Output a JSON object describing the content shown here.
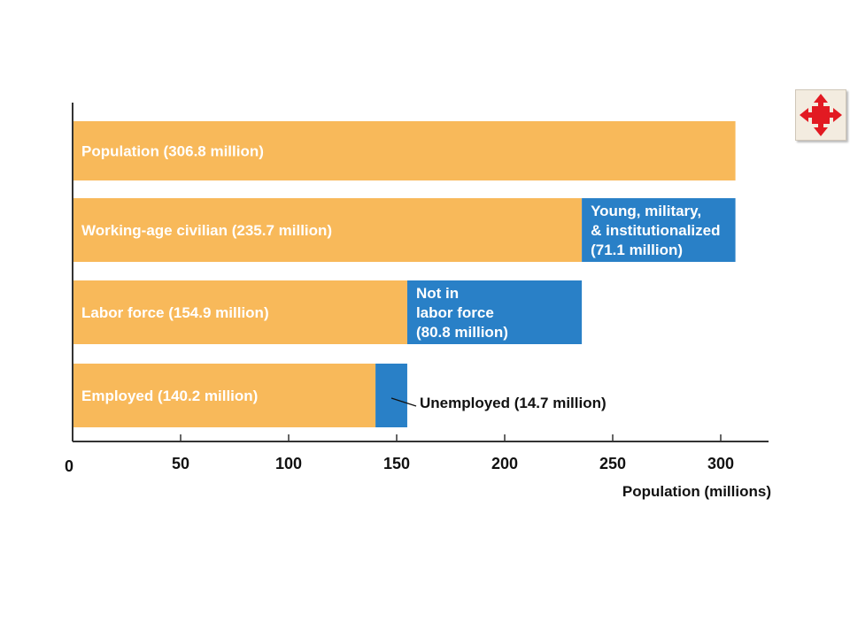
{
  "colors": {
    "orange": "#f8b95a",
    "blue": "#2980c7",
    "axis": "#333333",
    "icon_red": "#e21a22"
  },
  "nav": {
    "icon": "expand-arrows-icon"
  },
  "chart_data": {
    "type": "bar",
    "orientation": "horizontal",
    "stacked": true,
    "xlabel": "Population (millions)",
    "xlim": [
      0,
      322
    ],
    "xticks": [
      0,
      50,
      100,
      150,
      200,
      250,
      300
    ],
    "grid": false,
    "rows": [
      {
        "segments": [
          {
            "start": 0,
            "value": 306.8,
            "color": "orange",
            "label_lines": [
              "Population (306.8 million)"
            ]
          }
        ]
      },
      {
        "segments": [
          {
            "start": 0,
            "value": 235.7,
            "color": "orange",
            "label_lines": [
              "Working-age civilian (235.7 million)"
            ]
          },
          {
            "start": 235.7,
            "value": 71.1,
            "color": "blue",
            "label_lines": [
              "Young,  military,",
              "& institutionalized",
              "(71.1 million)"
            ]
          }
        ]
      },
      {
        "segments": [
          {
            "start": 0,
            "value": 154.9,
            "color": "orange",
            "label_lines": [
              "Labor force (154.9 million)"
            ]
          },
          {
            "start": 154.9,
            "value": 80.8,
            "color": "blue",
            "label_lines": [
              "Not in",
              "labor force",
              "(80.8 million)"
            ]
          }
        ]
      },
      {
        "segments": [
          {
            "start": 0,
            "value": 140.2,
            "color": "orange",
            "label_lines": [
              "Employed (140.2 million)"
            ]
          },
          {
            "start": 140.2,
            "value": 14.7,
            "color": "blue",
            "label_lines": []
          }
        ]
      }
    ],
    "callouts": [
      {
        "text": "Unemployed (14.7 million)"
      }
    ]
  }
}
